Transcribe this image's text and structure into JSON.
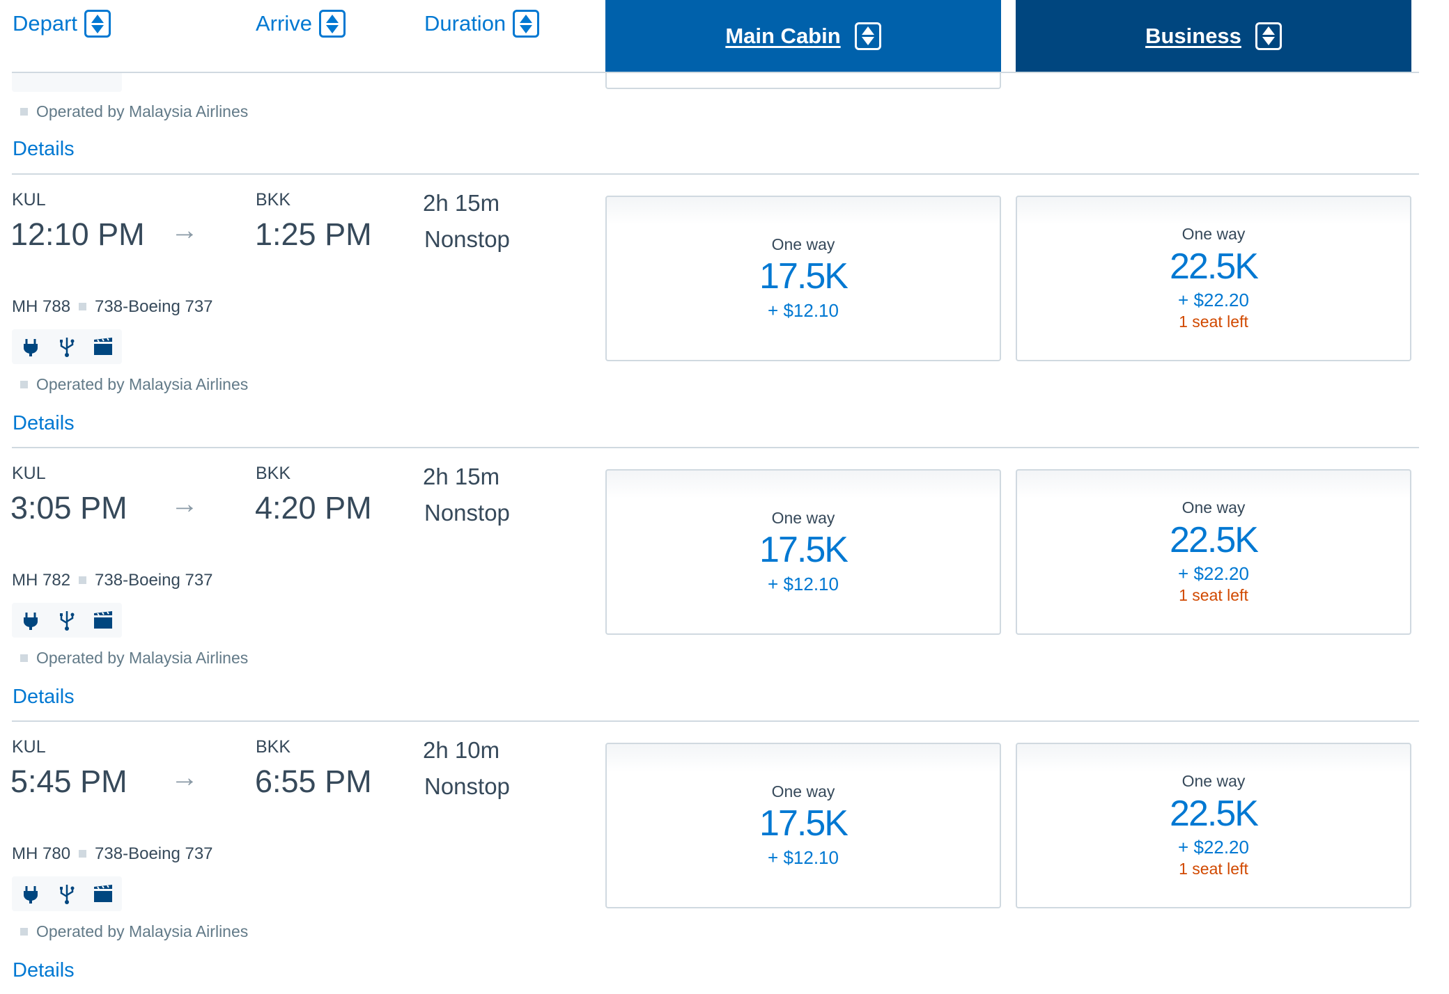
{
  "header": {
    "depart": "Depart",
    "arrive": "Arrive",
    "duration": "Duration",
    "main_cabin": "Main Cabin",
    "business": "Business",
    "colors": {
      "main_cabin": "#0061ab",
      "business": "#00467f",
      "link": "#0078d2",
      "alert": "#d14900"
    }
  },
  "partial_row": {
    "operated_by": "Operated by Malaysia Airlines",
    "details": "Details"
  },
  "flights": [
    {
      "origin": "KUL",
      "depart_time": "12:10 PM",
      "destination": "BKK",
      "arrive_time": "1:25 PM",
      "duration": "2h 15m",
      "stops": "Nonstop",
      "flight_number": "MH 788",
      "aircraft": "738-Boeing 737",
      "amenities": [
        "power-icon",
        "usb-icon",
        "entertainment-icon"
      ],
      "operated_by": "Operated by Malaysia Airlines",
      "details": "Details",
      "main_cabin": {
        "label": "One way",
        "miles": "17.5K",
        "fee": "+ $12.10"
      },
      "business": {
        "label": "One way",
        "miles": "22.5K",
        "fee": "+ $22.20",
        "seats": "1 seat left"
      }
    },
    {
      "origin": "KUL",
      "depart_time": "3:05 PM",
      "destination": "BKK",
      "arrive_time": "4:20 PM",
      "duration": "2h 15m",
      "stops": "Nonstop",
      "flight_number": "MH 782",
      "aircraft": "738-Boeing 737",
      "amenities": [
        "power-icon",
        "usb-icon",
        "entertainment-icon"
      ],
      "operated_by": "Operated by Malaysia Airlines",
      "details": "Details",
      "main_cabin": {
        "label": "One way",
        "miles": "17.5K",
        "fee": "+ $12.10"
      },
      "business": {
        "label": "One way",
        "miles": "22.5K",
        "fee": "+ $22.20",
        "seats": "1 seat left"
      }
    },
    {
      "origin": "KUL",
      "depart_time": "5:45 PM",
      "destination": "BKK",
      "arrive_time": "6:55 PM",
      "duration": "2h 10m",
      "stops": "Nonstop",
      "flight_number": "MH 780",
      "aircraft": "738-Boeing 737",
      "amenities": [
        "power-icon",
        "usb-icon",
        "entertainment-icon"
      ],
      "operated_by": "Operated by Malaysia Airlines",
      "details": "Details",
      "main_cabin": {
        "label": "One way",
        "miles": "17.5K",
        "fee": "+ $12.10"
      },
      "business": {
        "label": "One way",
        "miles": "22.5K",
        "fee": "+ $22.20",
        "seats": "1 seat left"
      }
    }
  ]
}
